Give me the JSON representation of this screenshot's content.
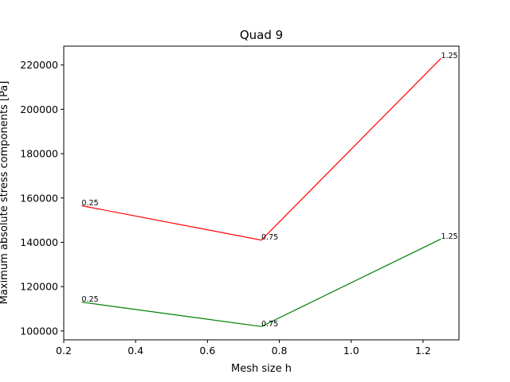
{
  "chart_data": {
    "type": "line",
    "title": "Quad 9",
    "xlabel": "Mesh size h",
    "ylabel": "Maximum absolute stress components [Pa]",
    "xlim": [
      0.2,
      1.3
    ],
    "ylim": [
      96000,
      228500
    ],
    "x_ticks": [
      0.2,
      0.4,
      0.6,
      0.8,
      1.0,
      1.2
    ],
    "x_tick_labels": [
      "0.2",
      "0.4",
      "0.6",
      "0.8",
      "1.0",
      "1.2"
    ],
    "y_ticks": [
      100000,
      120000,
      140000,
      160000,
      180000,
      200000,
      220000
    ],
    "y_tick_labels": [
      "100000",
      "120000",
      "140000",
      "160000",
      "180000",
      "200000",
      "220000"
    ],
    "grid": false,
    "x": [
      0.25,
      0.75,
      1.25
    ],
    "series": [
      {
        "color": "#ff0000",
        "values": [
          156500,
          141000,
          223000
        ],
        "point_labels": [
          "0.25",
          "0.75",
          "1.25"
        ]
      },
      {
        "color": "#008000",
        "values": [
          113000,
          102000,
          141500
        ],
        "point_labels": [
          "0.25",
          "0.75",
          "1.25"
        ]
      }
    ]
  }
}
